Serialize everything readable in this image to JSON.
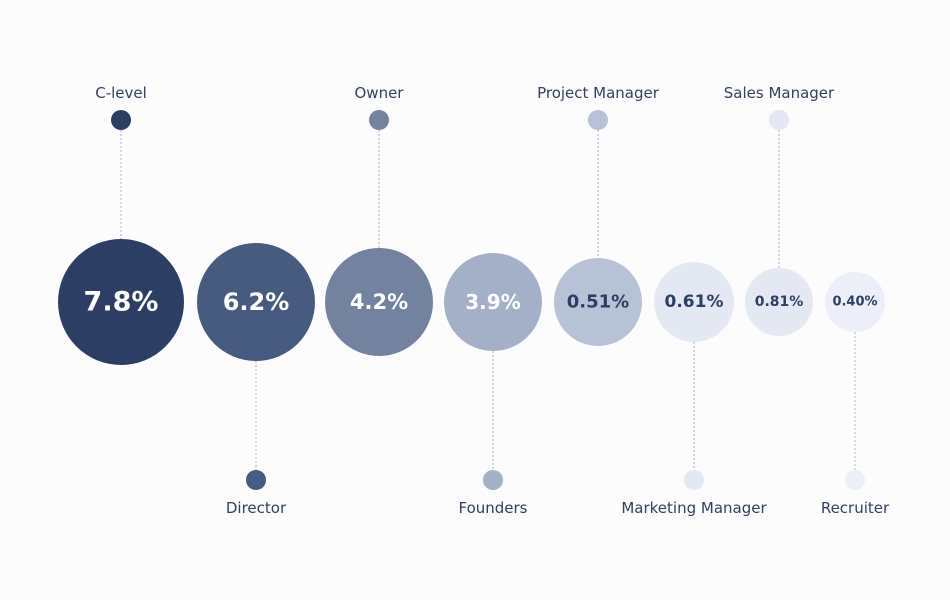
{
  "chart_data": {
    "type": "bubble",
    "categories": [
      "C-level",
      "Director",
      "Owner",
      "Founders",
      "Project Manager",
      "Marketing Manager",
      "Sales Manager",
      "Recruiter"
    ],
    "value_labels": [
      "7.8%",
      "6.2%",
      "4.2%",
      "3.9%",
      "0.51%",
      "0.61%",
      "0.81%",
      "0.40%"
    ],
    "values": [
      7.8,
      6.2,
      4.2,
      3.9,
      0.51,
      0.61,
      0.81,
      0.4
    ],
    "label_positions": [
      "top",
      "bottom",
      "top",
      "bottom",
      "top",
      "bottom",
      "top",
      "bottom"
    ],
    "colors": [
      "#2c3e63",
      "#475b81",
      "#73829f",
      "#a4afc8",
      "#b7c2d7",
      "#e3e8f3",
      "#e3e8f3",
      "#eceff7"
    ],
    "value_text_colors": [
      "#ffffff",
      "#ffffff",
      "#ffffff",
      "#ffffff",
      "#2c3e63",
      "#2c3e63",
      "#2c3e63",
      "#2c3e63"
    ]
  }
}
